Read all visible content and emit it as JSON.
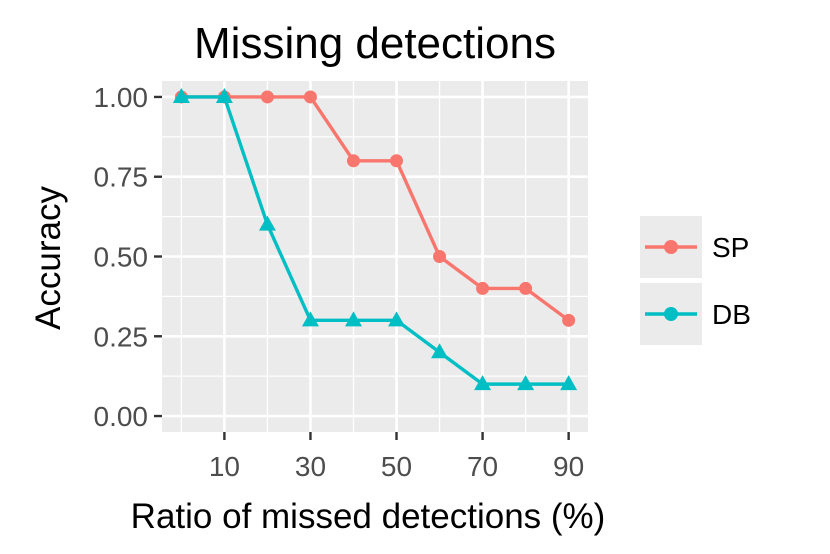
{
  "chart_data": {
    "type": "line",
    "title": "Missing detections",
    "xlabel": "Ratio of missed detections (%)",
    "ylabel": "Accuracy",
    "x": [
      0,
      10,
      20,
      30,
      40,
      50,
      60,
      70,
      80,
      90
    ],
    "x_ticks": [
      10,
      30,
      50,
      70,
      90
    ],
    "x_tick_labels": [
      "10",
      "30",
      "50",
      "70",
      "90"
    ],
    "xlim": [
      -4.5,
      94.5
    ],
    "y_ticks": [
      0,
      0.25,
      0.5,
      0.75,
      1
    ],
    "y_tick_labels": [
      "0.00",
      "0.25",
      "0.50",
      "0.75",
      "1.00"
    ],
    "ylim": [
      -0.05,
      1.05
    ],
    "grid": true,
    "legend_position": "right",
    "series": [
      {
        "name": "SP",
        "values": [
          1.0,
          1.0,
          1.0,
          1.0,
          0.8,
          0.8,
          0.5,
          0.4,
          0.4,
          0.3
        ],
        "color": "#F8766D",
        "marker": "circle"
      },
      {
        "name": "DB",
        "values": [
          1.0,
          1.0,
          0.6,
          0.3,
          0.3,
          0.3,
          0.2,
          0.1,
          0.1,
          0.1
        ],
        "color": "#00BFC4",
        "marker": "triangle"
      }
    ]
  },
  "colors": {
    "panel_background": "#EBEBEB",
    "grid": "#FFFFFF",
    "legend_key_background": "#EBEBEB"
  }
}
